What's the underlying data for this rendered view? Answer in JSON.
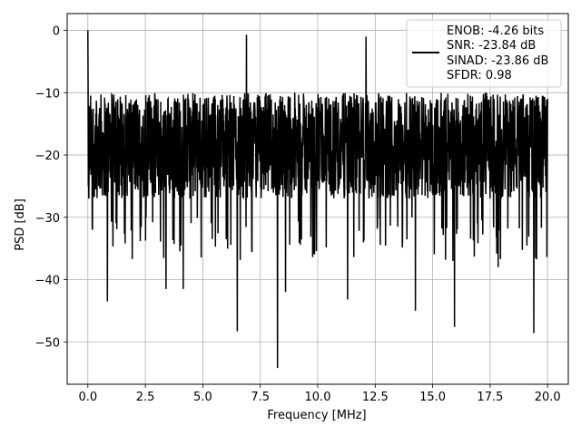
{
  "chart_data": {
    "type": "line",
    "xlabel": "Frequency [MHz]",
    "ylabel": "PSD [dB]",
    "xlim": [
      -0.9,
      20.9
    ],
    "ylim": [
      -56.8,
      2.7
    ],
    "xticks": [
      0.0,
      2.5,
      5.0,
      7.5,
      10.0,
      12.5,
      15.0,
      17.5,
      20.0
    ],
    "xtick_labels": [
      "0.0",
      "2.5",
      "5.0",
      "7.5",
      "10.0",
      "12.5",
      "15.0",
      "17.5",
      "20.0"
    ],
    "yticks": [
      0,
      -10,
      -20,
      -30,
      -40,
      -50
    ],
    "ytick_labels": [
      "0",
      "−10",
      "−20",
      "−30",
      "−40",
      "−50"
    ],
    "grid": true,
    "legend_position": "top-right",
    "legend_entries": [
      "ENOB: -4.26 bits",
      "SNR: -23.84 dB",
      "SINAD: -23.86 dB",
      "SFDR: 0.98"
    ],
    "series": [
      {
        "color": "#000000",
        "x_range": [
          0.0,
          20.0
        ],
        "peak": {
          "x": 0.0,
          "y": 0.0
        },
        "envelope_upper": -10,
        "envelope_lower": -30,
        "notable_minima": [
          {
            "x": 0.85,
            "y": -43.5
          },
          {
            "x": 3.4,
            "y": -41.5
          },
          {
            "x": 4.15,
            "y": -41.5
          },
          {
            "x": 6.5,
            "y": -48.3
          },
          {
            "x": 8.25,
            "y": -54.2
          },
          {
            "x": 8.6,
            "y": -42.0
          },
          {
            "x": 11.3,
            "y": -43.2
          },
          {
            "x": 14.25,
            "y": -45.0
          },
          {
            "x": 15.95,
            "y": -47.6
          },
          {
            "x": 17.85,
            "y": -38.0
          },
          {
            "x": 19.4,
            "y": -48.6
          }
        ],
        "notable_maxima": [
          {
            "x": 6.9,
            "y": -0.7
          },
          {
            "x": 12.1,
            "y": -1.0
          }
        ]
      }
    ]
  }
}
